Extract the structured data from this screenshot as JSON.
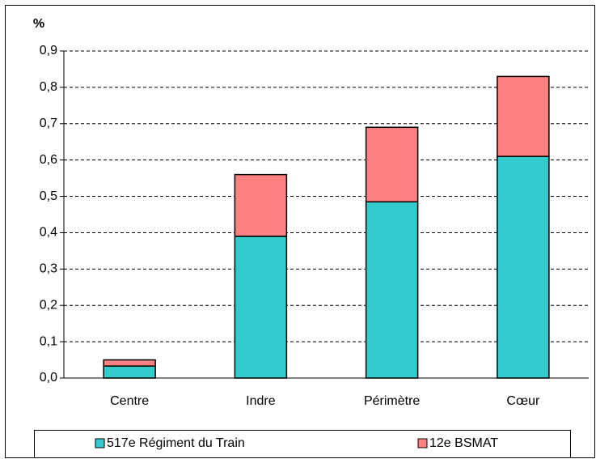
{
  "chart_data": {
    "type": "bar",
    "stacked": true,
    "ylabel": "%",
    "categories": [
      "Centre",
      "Indre",
      "Périmètre",
      "Cœur"
    ],
    "series": [
      {
        "name": "517e Régiment du Train",
        "color": "#33cccc",
        "values": [
          0.033,
          0.39,
          0.485,
          0.61
        ]
      },
      {
        "name": "12e BSMAT",
        "color": "#ff8080",
        "values": [
          0.017,
          0.17,
          0.205,
          0.22
        ]
      }
    ],
    "ylim": [
      0,
      0.9
    ],
    "yticks": [
      {
        "value": 0,
        "label": "0,0"
      },
      {
        "value": 0.1,
        "label": "0,1"
      },
      {
        "value": 0.2,
        "label": "0,2"
      },
      {
        "value": 0.3,
        "label": "0,3"
      },
      {
        "value": 0.4,
        "label": "0,4"
      },
      {
        "value": 0.5,
        "label": "0,5"
      },
      {
        "value": 0.6,
        "label": "0,6"
      },
      {
        "value": 0.7,
        "label": "0,7"
      },
      {
        "value": 0.8,
        "label": "0,8"
      },
      {
        "value": 0.9,
        "label": "0,9"
      }
    ],
    "grid": true,
    "legend": "bottom"
  }
}
